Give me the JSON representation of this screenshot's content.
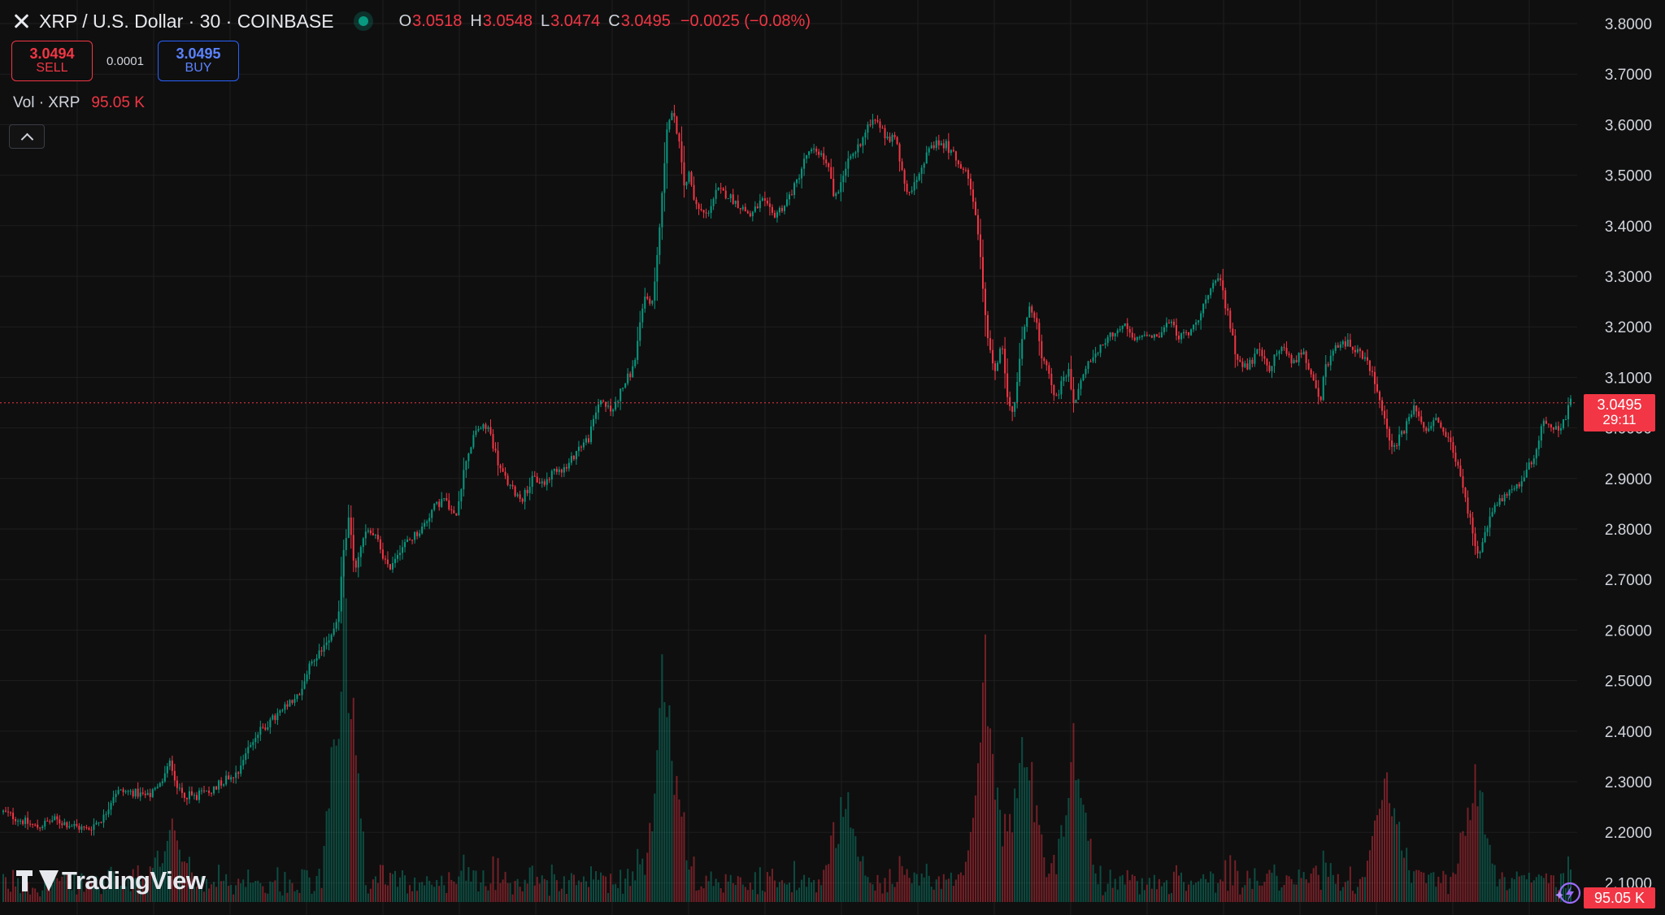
{
  "header": {
    "symbol": "XRP / U.S. Dollar · 30 · COINBASE",
    "open_label": "O",
    "open": "3.0518",
    "high_label": "H",
    "high": "3.0548",
    "low_label": "L",
    "low": "3.0474",
    "close_label": "C",
    "close": "3.0495",
    "change": "−0.0025 (−0.08%)"
  },
  "trade": {
    "sell_price": "3.0494",
    "sell_label": "SELL",
    "spread": "0.0001",
    "buy_price": "3.0495",
    "buy_label": "BUY"
  },
  "volume_indicator": {
    "title": "Vol · XRP",
    "value": "95.05 K"
  },
  "last_price_badge": {
    "price": "3.0495",
    "countdown": "29:11"
  },
  "volume_badge": "95.05 K",
  "logo_text": "TradingView",
  "icons": {
    "symbol": "xrp-logo-icon",
    "status": "market-open-dot-icon",
    "collapse": "chevron-up-icon",
    "assistant": "sparkle-lightning-icon"
  },
  "colors": {
    "background": "#0f0f0f",
    "up": "#089981",
    "down": "#f23645",
    "grid": "#1f1f1f",
    "buy": "#2962ff"
  },
  "chart_data": {
    "type": "candlestick",
    "title": "XRP / U.S. Dollar · 30 · COINBASE",
    "interval": "30",
    "y_axis_ticks": [
      "3.8000",
      "3.7000",
      "3.6000",
      "3.5000",
      "3.4000",
      "3.3000",
      "3.2000",
      "3.1000",
      "3.0000",
      "2.9000",
      "2.8000",
      "2.7000",
      "2.6000",
      "2.5000",
      "2.4000",
      "2.3000",
      "2.2000",
      "2.1000"
    ],
    "ylim": [
      2.08,
      3.82
    ],
    "last_price": 3.0495,
    "grid": true,
    "close_path": [
      [
        0,
        2.24
      ],
      [
        4,
        2.23
      ],
      [
        8,
        2.22
      ],
      [
        12,
        2.21
      ],
      [
        18,
        2.225
      ],
      [
        24,
        2.215
      ],
      [
        30,
        2.205
      ],
      [
        36,
        2.23
      ],
      [
        40,
        2.28
      ],
      [
        46,
        2.28
      ],
      [
        52,
        2.27
      ],
      [
        56,
        2.29
      ],
      [
        60,
        2.34
      ],
      [
        63,
        2.28
      ],
      [
        68,
        2.27
      ],
      [
        74,
        2.28
      ],
      [
        78,
        2.3
      ],
      [
        84,
        2.32
      ],
      [
        88,
        2.37
      ],
      [
        92,
        2.4
      ],
      [
        100,
        2.44
      ],
      [
        106,
        2.47
      ],
      [
        110,
        2.53
      ],
      [
        116,
        2.58
      ],
      [
        120,
        2.62
      ],
      [
        122,
        2.76
      ],
      [
        124,
        2.82
      ],
      [
        126,
        2.72
      ],
      [
        130,
        2.8
      ],
      [
        134,
        2.78
      ],
      [
        138,
        2.72
      ],
      [
        142,
        2.76
      ],
      [
        146,
        2.78
      ],
      [
        150,
        2.8
      ],
      [
        154,
        2.84
      ],
      [
        158,
        2.86
      ],
      [
        162,
        2.82
      ],
      [
        164,
        2.88
      ],
      [
        166,
        2.94
      ],
      [
        170,
        3.0
      ],
      [
        174,
        3.0
      ],
      [
        178,
        2.92
      ],
      [
        182,
        2.88
      ],
      [
        186,
        2.86
      ],
      [
        190,
        2.9
      ],
      [
        194,
        2.89
      ],
      [
        198,
        2.92
      ],
      [
        202,
        2.92
      ],
      [
        206,
        2.96
      ],
      [
        210,
        2.98
      ],
      [
        214,
        3.06
      ],
      [
        218,
        3.03
      ],
      [
        222,
        3.08
      ],
      [
        226,
        3.12
      ],
      [
        230,
        3.26
      ],
      [
        233,
        3.25
      ],
      [
        236,
        3.44
      ],
      [
        238,
        3.6
      ],
      [
        240,
        3.62
      ],
      [
        242,
        3.58
      ],
      [
        244,
        3.48
      ],
      [
        246,
        3.5
      ],
      [
        248,
        3.44
      ],
      [
        252,
        3.42
      ],
      [
        256,
        3.47
      ],
      [
        260,
        3.46
      ],
      [
        264,
        3.44
      ],
      [
        268,
        3.42
      ],
      [
        272,
        3.45
      ],
      [
        276,
        3.42
      ],
      [
        280,
        3.44
      ],
      [
        284,
        3.48
      ],
      [
        288,
        3.54
      ],
      [
        292,
        3.55
      ],
      [
        296,
        3.52
      ],
      [
        298,
        3.45
      ],
      [
        302,
        3.52
      ],
      [
        306,
        3.55
      ],
      [
        310,
        3.6
      ],
      [
        312,
        3.62
      ],
      [
        316,
        3.58
      ],
      [
        320,
        3.57
      ],
      [
        322,
        3.52
      ],
      [
        324,
        3.46
      ],
      [
        326,
        3.48
      ],
      [
        330,
        3.53
      ],
      [
        334,
        3.56
      ],
      [
        338,
        3.56
      ],
      [
        342,
        3.53
      ],
      [
        346,
        3.5
      ],
      [
        348,
        3.45
      ],
      [
        350,
        3.36
      ],
      [
        352,
        3.22
      ],
      [
        354,
        3.15
      ],
      [
        356,
        3.1
      ],
      [
        358,
        3.18
      ],
      [
        360,
        3.07
      ],
      [
        362,
        3.02
      ],
      [
        364,
        3.12
      ],
      [
        366,
        3.2
      ],
      [
        368,
        3.24
      ],
      [
        370,
        3.22
      ],
      [
        372,
        3.15
      ],
      [
        374,
        3.12
      ],
      [
        376,
        3.08
      ],
      [
        378,
        3.06
      ],
      [
        380,
        3.1
      ],
      [
        382,
        3.11
      ],
      [
        384,
        3.04
      ],
      [
        386,
        3.09
      ],
      [
        390,
        3.14
      ],
      [
        394,
        3.16
      ],
      [
        398,
        3.19
      ],
      [
        402,
        3.2
      ],
      [
        406,
        3.17
      ],
      [
        410,
        3.19
      ],
      [
        414,
        3.18
      ],
      [
        418,
        3.21
      ],
      [
        422,
        3.18
      ],
      [
        426,
        3.19
      ],
      [
        430,
        3.24
      ],
      [
        434,
        3.28
      ],
      [
        436,
        3.3
      ],
      [
        438,
        3.25
      ],
      [
        440,
        3.2
      ],
      [
        442,
        3.14
      ],
      [
        446,
        3.12
      ],
      [
        450,
        3.15
      ],
      [
        454,
        3.12
      ],
      [
        458,
        3.16
      ],
      [
        462,
        3.13
      ],
      [
        466,
        3.15
      ],
      [
        470,
        3.1
      ],
      [
        472,
        3.04
      ],
      [
        474,
        3.12
      ],
      [
        478,
        3.16
      ],
      [
        482,
        3.17
      ],
      [
        486,
        3.15
      ],
      [
        490,
        3.12
      ],
      [
        494,
        3.05
      ],
      [
        496,
        3.0
      ],
      [
        498,
        2.96
      ],
      [
        502,
        2.99
      ],
      [
        506,
        3.04
      ],
      [
        510,
        3.0
      ],
      [
        514,
        3.02
      ],
      [
        518,
        2.98
      ],
      [
        522,
        2.92
      ],
      [
        524,
        2.86
      ],
      [
        526,
        2.82
      ],
      [
        528,
        2.76
      ],
      [
        530,
        2.76
      ],
      [
        534,
        2.84
      ],
      [
        538,
        2.86
      ],
      [
        542,
        2.88
      ],
      [
        546,
        2.91
      ],
      [
        550,
        2.96
      ],
      [
        552,
        3.02
      ],
      [
        554,
        3.01
      ],
      [
        558,
        2.99
      ],
      [
        560,
        3.02
      ],
      [
        562,
        3.05
      ]
    ],
    "x_range": [
      0,
      562
    ],
    "volume": {
      "name": "Vol · XRP",
      "last": "95.05 K",
      "spikes": [
        [
          122,
          0.95
        ],
        [
          238,
          0.72
        ],
        [
          352,
          0.66
        ],
        [
          366,
          0.52
        ],
        [
          384,
          0.48
        ],
        [
          302,
          0.3
        ],
        [
          496,
          0.42
        ],
        [
          528,
          0.34
        ],
        [
          60,
          0.22
        ]
      ]
    }
  }
}
